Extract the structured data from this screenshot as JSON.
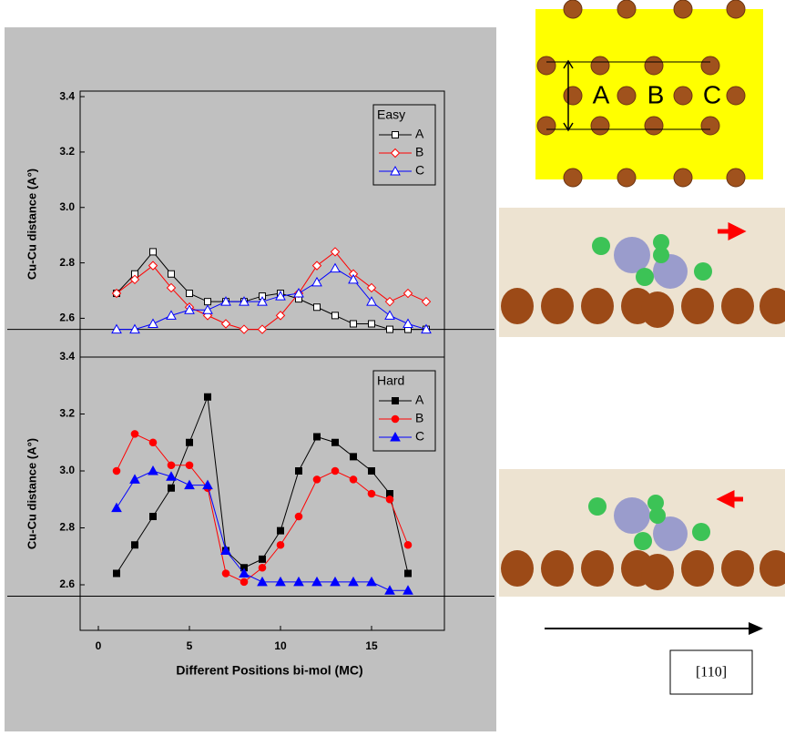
{
  "chart_data": [
    {
      "type": "line",
      "ylabel": "Cu-Cu distance (A°)",
      "legend_title": "Easy",
      "legend": "upper right",
      "marker_fill": false,
      "x": [
        1,
        2,
        3,
        4,
        5,
        6,
        7,
        8,
        9,
        10,
        11,
        12,
        13,
        14,
        15,
        16,
        17,
        18
      ],
      "series": [
        {
          "name": "A",
          "color": "#000000",
          "marker": "square",
          "values": [
            2.69,
            2.76,
            2.84,
            2.76,
            2.69,
            2.66,
            2.66,
            2.66,
            2.68,
            2.69,
            2.67,
            2.64,
            2.61,
            2.58,
            2.58,
            2.56,
            2.56,
            2.56
          ]
        },
        {
          "name": "B",
          "color": "#ff0000",
          "marker": "diamond",
          "values": [
            2.69,
            2.74,
            2.79,
            2.71,
            2.64,
            2.61,
            2.58,
            2.56,
            2.56,
            2.61,
            2.69,
            2.79,
            2.84,
            2.76,
            2.71,
            2.66,
            2.69,
            2.66
          ]
        },
        {
          "name": "C",
          "color": "#0000ff",
          "marker": "triangle",
          "values": [
            2.56,
            2.56,
            2.58,
            2.61,
            2.63,
            2.63,
            2.66,
            2.66,
            2.66,
            2.68,
            2.69,
            2.73,
            2.78,
            2.74,
            2.66,
            2.61,
            2.58,
            2.56
          ]
        }
      ],
      "xlim": [
        -1,
        19
      ],
      "ylim": [
        2.46,
        3.42
      ],
      "yticks": [
        2.6,
        2.8,
        {
          "value": 3,
          "label": "3.0"
        },
        3.2,
        3.4
      ],
      "reference_line": 2.56
    },
    {
      "type": "line",
      "ylabel": "Cu-Cu distance (A°)",
      "xlabel": "Different Positions bi-mol (MC)",
      "legend_title": "Hard",
      "legend": "upper right",
      "marker_fill": true,
      "x": [
        1,
        2,
        3,
        4,
        5,
        6,
        7,
        8,
        9,
        10,
        11,
        12,
        13,
        14,
        15,
        16,
        17
      ],
      "series": [
        {
          "name": "A",
          "color": "#000000",
          "marker": "square",
          "values": [
            2.64,
            2.74,
            2.84,
            2.94,
            3.1,
            3.26,
            2.72,
            2.66,
            2.69,
            2.79,
            3.0,
            3.12,
            3.1,
            3.05,
            3.0,
            2.92,
            2.64
          ]
        },
        {
          "name": "B",
          "color": "#ff0000",
          "marker": "circle",
          "values": [
            3.0,
            3.13,
            3.1,
            3.02,
            3.02,
            2.94,
            2.64,
            2.61,
            2.66,
            2.74,
            2.84,
            2.97,
            3.0,
            2.97,
            2.92,
            2.9,
            2.74
          ]
        },
        {
          "name": "C",
          "color": "#0000ff",
          "marker": "triangle",
          "values": [
            2.87,
            2.97,
            3.0,
            2.98,
            2.95,
            2.95,
            2.72,
            2.64,
            2.61,
            2.61,
            2.61,
            2.61,
            2.61,
            2.61,
            2.61,
            2.58,
            2.58
          ]
        }
      ],
      "xlim": [
        -1,
        19
      ],
      "ylim": [
        2.44,
        3.4
      ],
      "xticks": [
        0,
        5,
        10,
        15
      ],
      "yticks": [
        2.6,
        2.8,
        {
          "value": 3,
          "label": "3.0"
        },
        3.2,
        3.4
      ],
      "reference_line": 2.56
    }
  ],
  "figure_labels": {
    "lattice_sites": [
      "A",
      "B",
      "C"
    ],
    "direction": "[110]"
  }
}
